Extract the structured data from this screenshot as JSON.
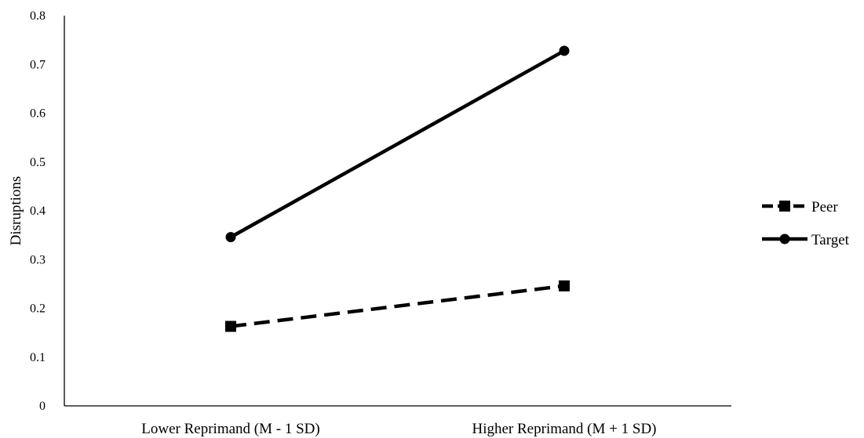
{
  "chart_data": {
    "type": "line",
    "categories": [
      "Lower Reprimand (M - 1 SD)",
      "Higher Reprimand (M + 1 SD)"
    ],
    "ylabel": "Disruptions",
    "xlabel": "",
    "ylim": [
      0,
      0.8
    ],
    "yticks": [
      "0",
      "0.1",
      "0.2",
      "0.3",
      "0.4",
      "0.5",
      "0.6",
      "0.7",
      "0.8"
    ],
    "grid": false,
    "legend_position": "right",
    "series": [
      {
        "name": "Peer",
        "values": [
          0.163,
          0.246
        ],
        "marker": "square",
        "line": "dashed",
        "color": "#000000"
      },
      {
        "name": "Target",
        "values": [
          0.346,
          0.728
        ],
        "marker": "circle",
        "line": "solid",
        "color": "#000000"
      }
    ]
  }
}
